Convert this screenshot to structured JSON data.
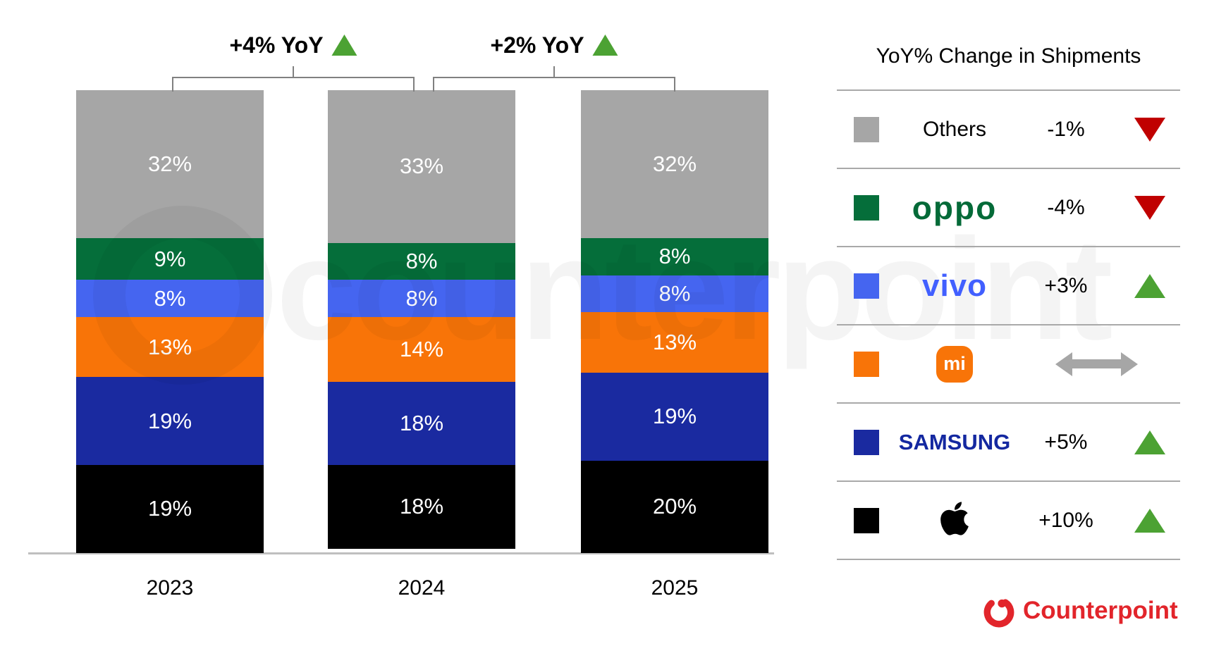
{
  "chart_data": {
    "type": "bar",
    "stacked": true,
    "categories": [
      "2023",
      "2024",
      "2025"
    ],
    "series": [
      {
        "name": "Apple",
        "color": "#000000",
        "values": [
          19,
          18,
          20
        ]
      },
      {
        "name": "Samsung",
        "color": "#1a2aa0",
        "values": [
          19,
          18,
          19
        ]
      },
      {
        "name": "Xiaomi",
        "color": "#f87408",
        "values": [
          13,
          14,
          13
        ]
      },
      {
        "name": "vivo",
        "color": "#4565f0",
        "values": [
          8,
          8,
          8
        ]
      },
      {
        "name": "OPPO",
        "color": "#056e3a",
        "values": [
          9,
          8,
          8
        ]
      },
      {
        "name": "Others",
        "color": "#a6a6a6",
        "values": [
          32,
          33,
          32
        ]
      }
    ],
    "value_suffix": "%",
    "ylim": [
      0,
      100
    ],
    "grid": false,
    "legend_position": "right",
    "annotations": [
      {
        "label": "+4% YoY",
        "direction": "up",
        "from": "2023",
        "to": "2024"
      },
      {
        "label": "+2% YoY",
        "direction": "up",
        "from": "2024",
        "to": "2025"
      }
    ]
  },
  "legend": {
    "title": "YoY% Change in Shipments",
    "rows": [
      {
        "brand": "Others",
        "display": "Others",
        "change": "-1%",
        "indicator": "down-triangle"
      },
      {
        "brand": "OPPO",
        "display": "oppo",
        "change": "-4%",
        "indicator": "down-triangle"
      },
      {
        "brand": "vivo",
        "display": "vivo",
        "change": "+3%",
        "indicator": "up-triangle"
      },
      {
        "brand": "Xiaomi",
        "display": "mi",
        "change": "",
        "indicator": "flat-arrow"
      },
      {
        "brand": "Samsung",
        "display": "SAMSUNG",
        "change": "+5%",
        "indicator": "up-triangle"
      },
      {
        "brand": "Apple",
        "display": "",
        "change": "+10%",
        "indicator": "up-triangle"
      }
    ]
  },
  "branding": {
    "logo_text": "Counterpoint"
  },
  "watermark": {
    "text": "counterpoint"
  },
  "colors": {
    "others": "#a6a6a6",
    "oppo": "#056e3a",
    "vivo": "#4565f0",
    "xiaomi": "#f87408",
    "samsung": "#1a2aa0",
    "apple": "#000000",
    "oppo_logo": "#046a38",
    "vivo_logo": "#415fff",
    "samsung_logo": "#1428a0",
    "up": "#4CA233",
    "down": "#c00000",
    "flat": "#a6a6a6",
    "brand_red": "#e2252b"
  }
}
